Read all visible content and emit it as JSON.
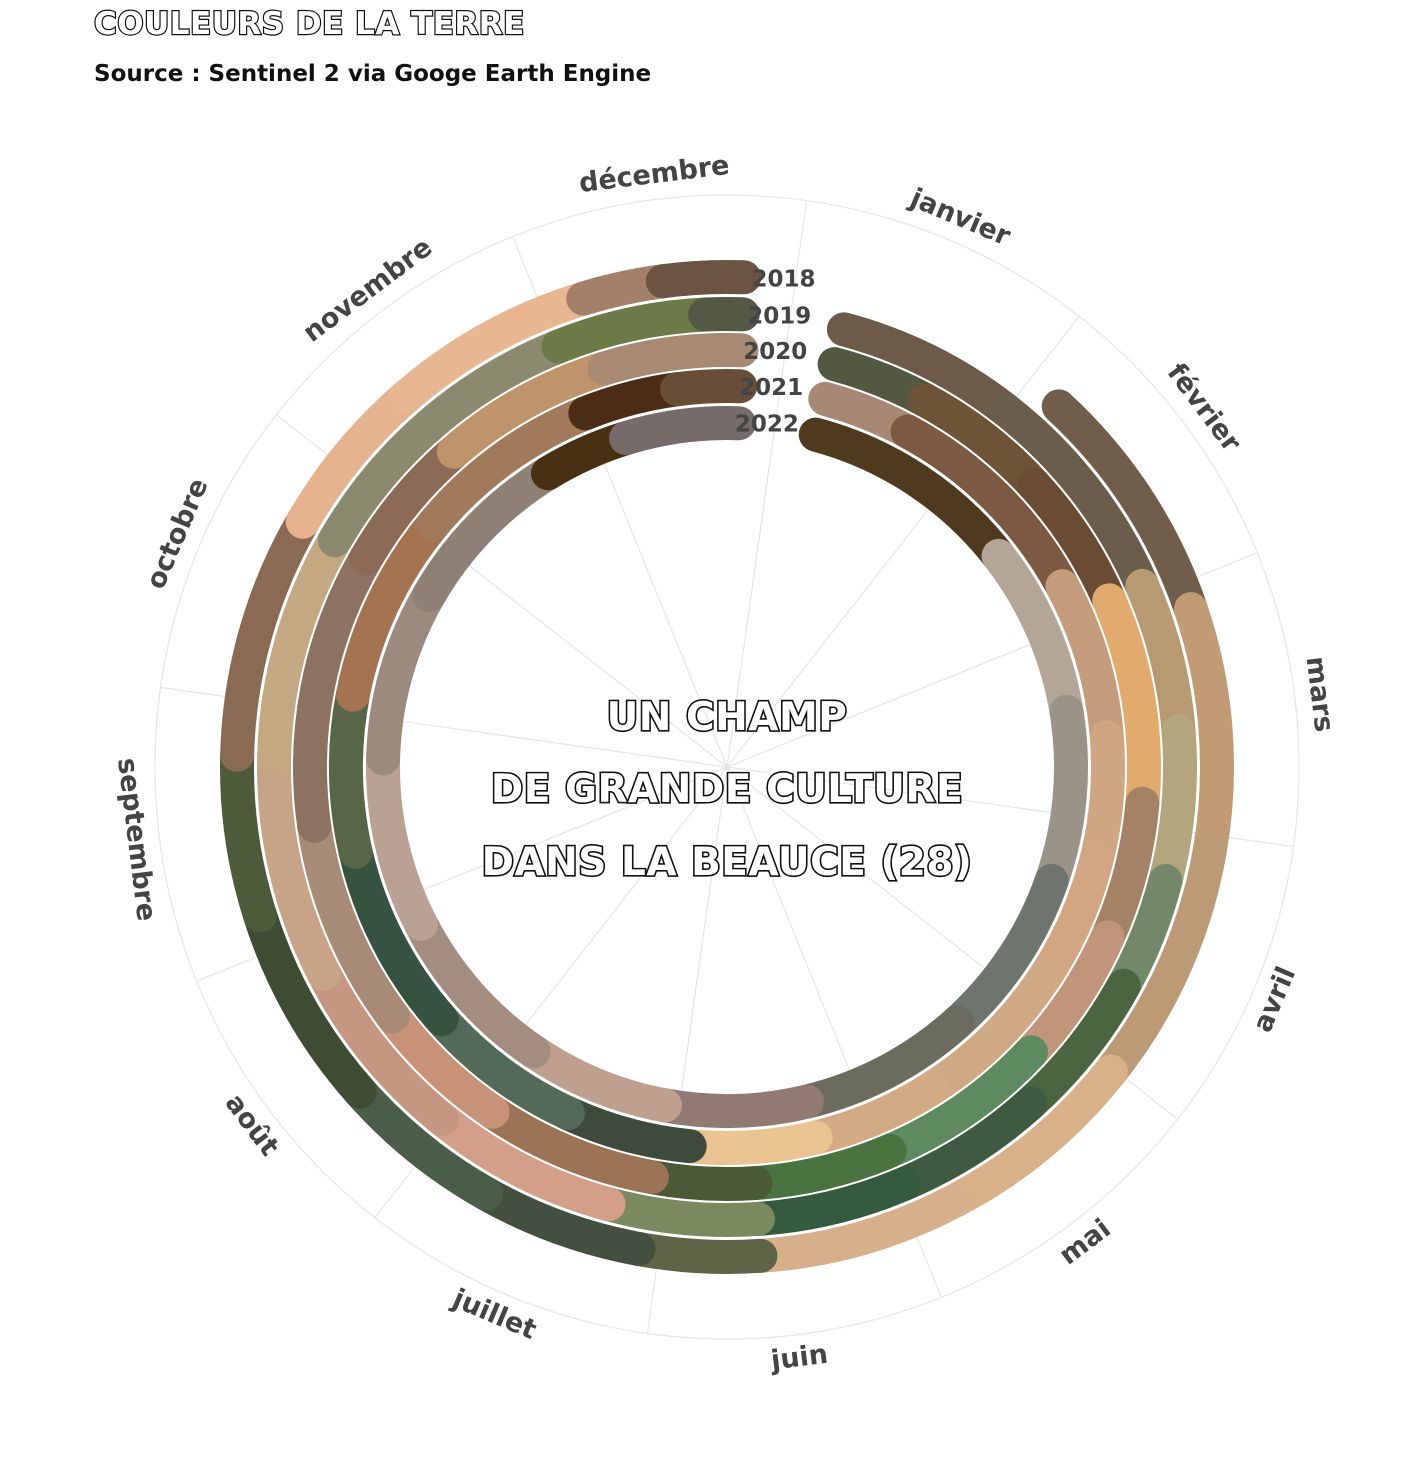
{
  "header": {
    "title": "COULEURS DE LA TERRE",
    "subtitle": "Source : Sentinel 2 via Googe Earth Engine"
  },
  "chart_data": {
    "type": "radial-color-timeline",
    "title": "COULEURS DE LA TERRE",
    "subtitle": "Source : Sentinel 2 via Googe Earth Engine",
    "center_text": [
      "UN CHAMP",
      "DE GRANDE CULTURE",
      "DANS LA BEAUCE (28)"
    ],
    "months": [
      "janvier",
      "février",
      "mars",
      "avril",
      "mai",
      "juin",
      "juillet",
      "août",
      "septembre",
      "octobre",
      "novembre",
      "décembre"
    ],
    "grid": true,
    "x_unit": "day of year",
    "series": [
      {
        "name": "2018",
        "segments": [
          {
            "start": 30,
            "end": 60,
            "color": "#705e4b"
          },
          {
            "start": 60,
            "end": 90,
            "color": "#c09b74"
          },
          {
            "start": 90,
            "end": 120,
            "color": "#bc9a76"
          },
          {
            "start": 120,
            "end": 145,
            "color": "#d9b188"
          },
          {
            "start": 145,
            "end": 170,
            "color": "#d6b08a"
          },
          {
            "start": 170,
            "end": 185,
            "color": "#5f6447"
          },
          {
            "start": 185,
            "end": 205,
            "color": "#43503f"
          },
          {
            "start": 205,
            "end": 225,
            "color": "#4a5d48"
          },
          {
            "start": 225,
            "end": 250,
            "color": "#3e4c34"
          },
          {
            "start": 250,
            "end": 270,
            "color": "#4d5b3a"
          },
          {
            "start": 270,
            "end": 300,
            "color": "#8a6a52"
          },
          {
            "start": 300,
            "end": 320,
            "color": "#e6b38f"
          },
          {
            "start": 320,
            "end": 345,
            "color": "#e8b792"
          },
          {
            "start": 345,
            "end": 355,
            "color": "#a48068"
          },
          {
            "start": 355,
            "end": 365,
            "color": "#6b5442"
          }
        ]
      },
      {
        "name": "2019",
        "segments": [
          {
            "start": 1,
            "end": 25,
            "color": "#6e5a49"
          },
          {
            "start": 25,
            "end": 55,
            "color": "#6b5d4b"
          },
          {
            "start": 55,
            "end": 75,
            "color": "#b89a72"
          },
          {
            "start": 75,
            "end": 95,
            "color": "#b3a57d"
          },
          {
            "start": 95,
            "end": 110,
            "color": "#728869"
          },
          {
            "start": 110,
            "end": 130,
            "color": "#4b6540"
          },
          {
            "start": 130,
            "end": 150,
            "color": "#3e5a41"
          },
          {
            "start": 150,
            "end": 170,
            "color": "#345a40"
          },
          {
            "start": 170,
            "end": 190,
            "color": "#7b8a5e"
          },
          {
            "start": 190,
            "end": 215,
            "color": "#d39f88"
          },
          {
            "start": 215,
            "end": 240,
            "color": "#c59680"
          },
          {
            "start": 240,
            "end": 270,
            "color": "#c8a486"
          },
          {
            "start": 270,
            "end": 300,
            "color": "#c4a882"
          },
          {
            "start": 300,
            "end": 340,
            "color": "#8b8a6e"
          },
          {
            "start": 340,
            "end": 360,
            "color": "#6c7a47"
          },
          {
            "start": 360,
            "end": 365,
            "color": "#545945"
          }
        ]
      },
      {
        "name": "2020",
        "segments": [
          {
            "start": 1,
            "end": 15,
            "color": "#525841"
          },
          {
            "start": 15,
            "end": 35,
            "color": "#6e5337"
          },
          {
            "start": 35,
            "end": 55,
            "color": "#6a4c33"
          },
          {
            "start": 55,
            "end": 85,
            "color": "#e1ab6e"
          },
          {
            "start": 85,
            "end": 105,
            "color": "#a48266"
          },
          {
            "start": 105,
            "end": 125,
            "color": "#c09579"
          },
          {
            "start": 125,
            "end": 150,
            "color": "#5e8a60"
          },
          {
            "start": 150,
            "end": 170,
            "color": "#4a743f"
          },
          {
            "start": 170,
            "end": 185,
            "color": "#4a5a36"
          },
          {
            "start": 185,
            "end": 210,
            "color": "#9a7454"
          },
          {
            "start": 210,
            "end": 230,
            "color": "#c79275"
          },
          {
            "start": 230,
            "end": 260,
            "color": "#a78b76"
          },
          {
            "start": 260,
            "end": 300,
            "color": "#8d7262"
          },
          {
            "start": 300,
            "end": 320,
            "color": "#8b6b55"
          },
          {
            "start": 320,
            "end": 345,
            "color": "#c0946a"
          },
          {
            "start": 345,
            "end": 365,
            "color": "#a88a73"
          }
        ]
      },
      {
        "name": "2021",
        "segments": [
          {
            "start": 1,
            "end": 15,
            "color": "#a78874"
          },
          {
            "start": 15,
            "end": 50,
            "color": "#7b5a41"
          },
          {
            "start": 50,
            "end": 75,
            "color": "#c49c7b"
          },
          {
            "start": 75,
            "end": 95,
            "color": "#cfa682"
          },
          {
            "start": 95,
            "end": 115,
            "color": "#d3a683"
          },
          {
            "start": 115,
            "end": 140,
            "color": "#cfa984"
          },
          {
            "start": 140,
            "end": 160,
            "color": "#d2aa84"
          },
          {
            "start": 160,
            "end": 180,
            "color": "#e9c491"
          },
          {
            "start": 180,
            "end": 200,
            "color": "#3e4b3c"
          },
          {
            "start": 200,
            "end": 225,
            "color": "#546a58"
          },
          {
            "start": 225,
            "end": 255,
            "color": "#365240"
          },
          {
            "start": 255,
            "end": 280,
            "color": "#566646"
          },
          {
            "start": 280,
            "end": 310,
            "color": "#a47451"
          },
          {
            "start": 310,
            "end": 340,
            "color": "#a07a5a"
          },
          {
            "start": 340,
            "end": 355,
            "color": "#4a2d14"
          },
          {
            "start": 355,
            "end": 365,
            "color": "#684e36"
          }
        ]
      },
      {
        "name": "2022",
        "segments": [
          {
            "start": 1,
            "end": 40,
            "color": "#4f3a1e"
          },
          {
            "start": 40,
            "end": 70,
            "color": "#b3a697"
          },
          {
            "start": 70,
            "end": 100,
            "color": "#999487"
          },
          {
            "start": 100,
            "end": 130,
            "color": "#6e756d"
          },
          {
            "start": 130,
            "end": 160,
            "color": "#6c6c5e"
          },
          {
            "start": 160,
            "end": 185,
            "color": "#907a71"
          },
          {
            "start": 185,
            "end": 210,
            "color": "#bfa08f"
          },
          {
            "start": 210,
            "end": 240,
            "color": "#a38d7f"
          },
          {
            "start": 240,
            "end": 270,
            "color": "#b9a193"
          },
          {
            "start": 270,
            "end": 300,
            "color": "#9c8a7e"
          },
          {
            "start": 300,
            "end": 330,
            "color": "#8e8074"
          },
          {
            "start": 330,
            "end": 345,
            "color": "#4a3012"
          },
          {
            "start": 345,
            "end": 365,
            "color": "#766b68"
          }
        ]
      }
    ]
  }
}
